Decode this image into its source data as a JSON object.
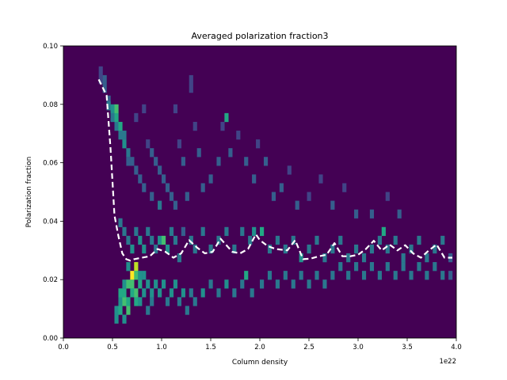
{
  "chart_data": {
    "type": "heatmap",
    "title": "Averaged polarization fraction3",
    "xlabel": "Column density",
    "ylabel": "Polarization fraction",
    "x_offset_label": "1e22",
    "xlim": [
      0.0,
      4.0
    ],
    "ylim": [
      0.0,
      0.1
    ],
    "x_ticks": [
      "0.0",
      "0.5",
      "1.0",
      "1.5",
      "2.0",
      "2.5",
      "3.0",
      "3.5",
      "4.0"
    ],
    "y_ticks": [
      "0.00",
      "0.02",
      "0.04",
      "0.06",
      "0.08",
      "0.10"
    ],
    "colormap": "viridis",
    "background_color": "#440154",
    "grid": false,
    "histogram_cells_x_bin_low_y_bin_low_count": [
      [
        0.36,
        0.087,
        2
      ],
      [
        0.36,
        0.09,
        2
      ],
      [
        0.4,
        0.084,
        3
      ],
      [
        0.4,
        0.087,
        3
      ],
      [
        0.44,
        0.08,
        3
      ],
      [
        0.44,
        0.078,
        4
      ],
      [
        0.48,
        0.077,
        5
      ],
      [
        0.48,
        0.074,
        4
      ],
      [
        0.52,
        0.077,
        7
      ],
      [
        0.52,
        0.074,
        6
      ],
      [
        0.52,
        0.071,
        4
      ],
      [
        0.56,
        0.071,
        6
      ],
      [
        0.56,
        0.068,
        4
      ],
      [
        0.6,
        0.065,
        5
      ],
      [
        0.6,
        0.068,
        4
      ],
      [
        0.64,
        0.062,
        4
      ],
      [
        0.64,
        0.059,
        3
      ],
      [
        0.68,
        0.059,
        3
      ],
      [
        0.72,
        0.074,
        2
      ],
      [
        0.72,
        0.056,
        3
      ],
      [
        0.76,
        0.053,
        3
      ],
      [
        0.8,
        0.05,
        3
      ],
      [
        0.8,
        0.077,
        2
      ],
      [
        0.84,
        0.065,
        2
      ],
      [
        0.88,
        0.062,
        3
      ],
      [
        0.88,
        0.047,
        3
      ],
      [
        0.92,
        0.059,
        3
      ],
      [
        0.96,
        0.056,
        3
      ],
      [
        0.96,
        0.044,
        4
      ],
      [
        1.0,
        0.053,
        3
      ],
      [
        1.04,
        0.05,
        3
      ],
      [
        1.08,
        0.047,
        3
      ],
      [
        1.12,
        0.077,
        2
      ],
      [
        1.12,
        0.044,
        3
      ],
      [
        1.16,
        0.065,
        2
      ],
      [
        1.2,
        0.059,
        3
      ],
      [
        1.24,
        0.047,
        3
      ],
      [
        1.28,
        0.087,
        2
      ],
      [
        1.28,
        0.084,
        2
      ],
      [
        1.32,
        0.071,
        2
      ],
      [
        1.36,
        0.062,
        3
      ],
      [
        1.4,
        0.05,
        3
      ],
      [
        1.48,
        0.053,
        3
      ],
      [
        1.56,
        0.059,
        3
      ],
      [
        1.6,
        0.071,
        2
      ],
      [
        1.64,
        0.074,
        6
      ],
      [
        1.68,
        0.062,
        3
      ],
      [
        1.76,
        0.068,
        2
      ],
      [
        1.84,
        0.059,
        3
      ],
      [
        1.92,
        0.053,
        3
      ],
      [
        1.96,
        0.065,
        2
      ],
      [
        2.04,
        0.059,
        3
      ],
      [
        2.12,
        0.047,
        3
      ],
      [
        2.2,
        0.05,
        3
      ],
      [
        2.28,
        0.056,
        2
      ],
      [
        2.36,
        0.044,
        3
      ],
      [
        2.48,
        0.047,
        2
      ],
      [
        2.6,
        0.053,
        2
      ],
      [
        2.72,
        0.044,
        3
      ],
      [
        2.84,
        0.05,
        2
      ],
      [
        2.96,
        0.041,
        3
      ],
      [
        3.12,
        0.041,
        3
      ],
      [
        3.28,
        0.047,
        2
      ],
      [
        3.4,
        0.041,
        3
      ],
      [
        0.56,
        0.038,
        4
      ],
      [
        0.6,
        0.035,
        4
      ],
      [
        0.64,
        0.032,
        4
      ],
      [
        0.68,
        0.029,
        5
      ],
      [
        0.72,
        0.035,
        4
      ],
      [
        0.76,
        0.032,
        5
      ],
      [
        0.8,
        0.029,
        5
      ],
      [
        0.84,
        0.035,
        4
      ],
      [
        0.88,
        0.032,
        4
      ],
      [
        0.92,
        0.029,
        4
      ],
      [
        0.96,
        0.032,
        5
      ],
      [
        1.0,
        0.032,
        7
      ],
      [
        1.04,
        0.029,
        5
      ],
      [
        1.08,
        0.035,
        4
      ],
      [
        1.12,
        0.032,
        4
      ],
      [
        1.16,
        0.026,
        4
      ],
      [
        1.2,
        0.035,
        3
      ],
      [
        1.28,
        0.032,
        4
      ],
      [
        1.32,
        0.029,
        4
      ],
      [
        1.4,
        0.035,
        4
      ],
      [
        1.48,
        0.029,
        4
      ],
      [
        1.56,
        0.032,
        4
      ],
      [
        1.64,
        0.035,
        4
      ],
      [
        1.72,
        0.029,
        4
      ],
      [
        1.8,
        0.035,
        4
      ],
      [
        1.88,
        0.032,
        4
      ],
      [
        1.92,
        0.035,
        5
      ],
      [
        2.0,
        0.035,
        6
      ],
      [
        2.08,
        0.029,
        4
      ],
      [
        2.16,
        0.032,
        4
      ],
      [
        2.24,
        0.029,
        4
      ],
      [
        2.32,
        0.032,
        4
      ],
      [
        2.4,
        0.026,
        5
      ],
      [
        2.48,
        0.029,
        4
      ],
      [
        2.56,
        0.032,
        4
      ],
      [
        2.64,
        0.026,
        4
      ],
      [
        2.72,
        0.029,
        4
      ],
      [
        2.8,
        0.032,
        4
      ],
      [
        2.88,
        0.026,
        4
      ],
      [
        2.96,
        0.029,
        4
      ],
      [
        3.04,
        0.026,
        4
      ],
      [
        3.12,
        0.029,
        4
      ],
      [
        3.2,
        0.032,
        4
      ],
      [
        3.24,
        0.035,
        6
      ],
      [
        3.28,
        0.029,
        4
      ],
      [
        3.36,
        0.032,
        4
      ],
      [
        3.44,
        0.026,
        4
      ],
      [
        3.52,
        0.029,
        4
      ],
      [
        3.6,
        0.032,
        4
      ],
      [
        3.68,
        0.026,
        4
      ],
      [
        3.76,
        0.029,
        4
      ],
      [
        3.84,
        0.032,
        4
      ],
      [
        3.92,
        0.026,
        3
      ],
      [
        0.52,
        0.005,
        5
      ],
      [
        0.52,
        0.008,
        5
      ],
      [
        0.56,
        0.008,
        6
      ],
      [
        0.56,
        0.011,
        5
      ],
      [
        0.56,
        0.014,
        6
      ],
      [
        0.6,
        0.005,
        5
      ],
      [
        0.6,
        0.011,
        7
      ],
      [
        0.6,
        0.014,
        6
      ],
      [
        0.6,
        0.017,
        5
      ],
      [
        0.64,
        0.008,
        7
      ],
      [
        0.64,
        0.011,
        6
      ],
      [
        0.64,
        0.017,
        7
      ],
      [
        0.64,
        0.023,
        5
      ],
      [
        0.68,
        0.02,
        10
      ],
      [
        0.68,
        0.017,
        7
      ],
      [
        0.68,
        0.014,
        6
      ],
      [
        0.72,
        0.023,
        9
      ],
      [
        0.72,
        0.02,
        7
      ],
      [
        0.72,
        0.014,
        7
      ],
      [
        0.72,
        0.011,
        6
      ],
      [
        0.76,
        0.017,
        6
      ],
      [
        0.76,
        0.02,
        5
      ],
      [
        0.76,
        0.011,
        5
      ],
      [
        0.8,
        0.014,
        5
      ],
      [
        0.8,
        0.02,
        5
      ],
      [
        0.84,
        0.017,
        5
      ],
      [
        0.84,
        0.008,
        4
      ],
      [
        0.88,
        0.014,
        5
      ],
      [
        0.88,
        0.011,
        4
      ],
      [
        0.92,
        0.017,
        5
      ],
      [
        0.96,
        0.014,
        5
      ],
      [
        1.0,
        0.017,
        5
      ],
      [
        1.04,
        0.011,
        4
      ],
      [
        1.08,
        0.014,
        5
      ],
      [
        1.12,
        0.017,
        5
      ],
      [
        1.16,
        0.011,
        4
      ],
      [
        1.2,
        0.014,
        5
      ],
      [
        1.24,
        0.008,
        4
      ],
      [
        1.28,
        0.014,
        4
      ],
      [
        1.32,
        0.011,
        4
      ],
      [
        1.4,
        0.014,
        5
      ],
      [
        1.48,
        0.017,
        4
      ],
      [
        1.56,
        0.014,
        4
      ],
      [
        1.64,
        0.017,
        5
      ],
      [
        1.72,
        0.014,
        4
      ],
      [
        1.8,
        0.017,
        4
      ],
      [
        1.84,
        0.02,
        6
      ],
      [
        1.9,
        0.014,
        4
      ],
      [
        2.0,
        0.017,
        4
      ],
      [
        2.08,
        0.02,
        4
      ],
      [
        2.16,
        0.017,
        4
      ],
      [
        2.24,
        0.02,
        4
      ],
      [
        2.32,
        0.017,
        4
      ],
      [
        2.4,
        0.02,
        4
      ],
      [
        2.48,
        0.017,
        4
      ],
      [
        2.56,
        0.02,
        4
      ],
      [
        2.64,
        0.017,
        4
      ],
      [
        2.72,
        0.02,
        4
      ],
      [
        2.8,
        0.023,
        4
      ],
      [
        2.88,
        0.02,
        4
      ],
      [
        2.96,
        0.023,
        4
      ],
      [
        3.04,
        0.02,
        4
      ],
      [
        3.12,
        0.023,
        4
      ],
      [
        3.2,
        0.02,
        4
      ],
      [
        3.28,
        0.023,
        4
      ],
      [
        3.36,
        0.02,
        4
      ],
      [
        3.44,
        0.023,
        4
      ],
      [
        3.52,
        0.02,
        4
      ],
      [
        3.6,
        0.023,
        4
      ],
      [
        3.68,
        0.02,
        4
      ],
      [
        3.76,
        0.023,
        4
      ],
      [
        3.84,
        0.02,
        4
      ],
      [
        3.92,
        0.02,
        3
      ]
    ],
    "series": [
      {
        "style": "white dashed line",
        "x": [
          0.36,
          0.44,
          0.48,
          0.52,
          0.56,
          0.6,
          0.64,
          0.68,
          0.72,
          0.8,
          0.88,
          0.96,
          1.04,
          1.12,
          1.2,
          1.28,
          1.36,
          1.44,
          1.52,
          1.6,
          1.64,
          1.72,
          1.8,
          1.88,
          1.96,
          2.0,
          2.08,
          2.16,
          2.28,
          2.36,
          2.44,
          2.52,
          2.6,
          2.68,
          2.76,
          2.84,
          2.92,
          3.0,
          3.08,
          3.16,
          3.24,
          3.32,
          3.4,
          3.48,
          3.56,
          3.64,
          3.72,
          3.8,
          3.88,
          3.96
        ],
        "y": [
          0.0885,
          0.083,
          0.065,
          0.042,
          0.035,
          0.029,
          0.027,
          0.0265,
          0.027,
          0.0275,
          0.028,
          0.0305,
          0.0295,
          0.0275,
          0.029,
          0.0335,
          0.031,
          0.029,
          0.0295,
          0.034,
          0.0325,
          0.0295,
          0.029,
          0.0305,
          0.0355,
          0.0335,
          0.0315,
          0.0305,
          0.03,
          0.0335,
          0.027,
          0.0272,
          0.028,
          0.0285,
          0.0325,
          0.028,
          0.028,
          0.0285,
          0.0305,
          0.0333,
          0.03,
          0.032,
          0.03,
          0.0318,
          0.029,
          0.0275,
          0.03,
          0.032,
          0.0275,
          0.0275
        ]
      }
    ]
  }
}
